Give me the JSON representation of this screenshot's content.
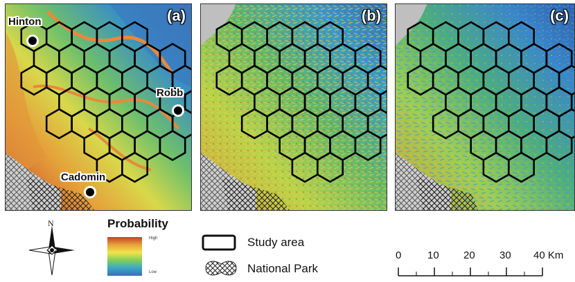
{
  "panels": [
    {
      "id": "a",
      "label": "(a)"
    },
    {
      "id": "b",
      "label": "(b)"
    },
    {
      "id": "c",
      "label": "(c)"
    }
  ],
  "towns": {
    "hinton": "Hinton",
    "robb": "Robb",
    "cadomin": "Cadomin"
  },
  "legend": {
    "north_label": "N",
    "probability_title": "Probability",
    "probability_high": "High",
    "probability_low": "Low",
    "study_area": "Study area",
    "national_park": "National Park",
    "ramp_colors": [
      "#c4412a",
      "#e7a23a",
      "#f2e44a",
      "#7fcf5a",
      "#3aa7c8",
      "#3b6fb4"
    ]
  },
  "scale_bar": {
    "ticks": [
      "0",
      "10",
      "20",
      "30",
      "40 Km"
    ]
  }
}
